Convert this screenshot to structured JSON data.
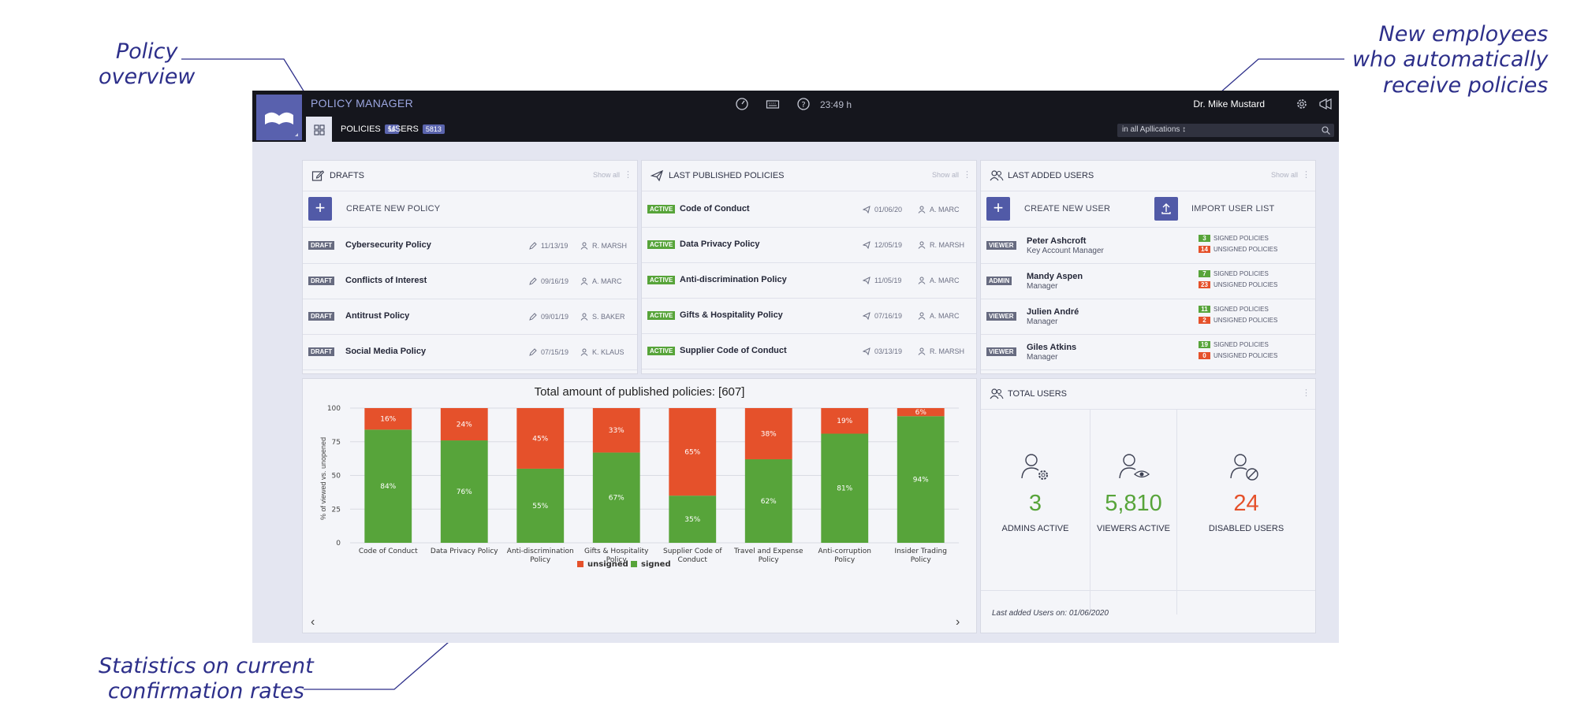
{
  "annotations": {
    "policy_overview": "Policy\noverview",
    "new_employees": "New employees\nwho automatically\nreceive policies",
    "statistics": "Statistics on current\nconfirmation rates"
  },
  "app": {
    "title": "POLICY MANAGER",
    "tabs": [
      {
        "label": "POLICIES",
        "count": "56"
      },
      {
        "label": "USERS",
        "count": "5813"
      }
    ],
    "time": "23:49 h",
    "user": "Dr. Mike Mustard",
    "search_scope": "in all Apllications ↕"
  },
  "drafts": {
    "title": "DRAFTS",
    "show_all": "Show all",
    "create_label": "CREATE NEW POLICY",
    "rows": [
      {
        "tag": "DRAFT",
        "title": "Cybersecurity Policy",
        "date": "11/13/19",
        "author": "R. MARSH"
      },
      {
        "tag": "DRAFT",
        "title": "Conflicts of Interest",
        "date": "09/16/19",
        "author": "A. MARC"
      },
      {
        "tag": "DRAFT",
        "title": "Antitrust Policy",
        "date": "09/01/19",
        "author": "S. BAKER"
      },
      {
        "tag": "DRAFT",
        "title": "Social Media Policy",
        "date": "07/15/19",
        "author": "K. KLAUS"
      }
    ]
  },
  "published": {
    "title": "LAST PUBLISHED POLICIES",
    "show_all": "Show all",
    "rows": [
      {
        "tag": "ACTIVE",
        "title": "Code of Conduct",
        "date": "01/06/20",
        "author": "A. MARC"
      },
      {
        "tag": "ACTIVE",
        "title": "Data Privacy Policy",
        "date": "12/05/19",
        "author": "R. MARSH"
      },
      {
        "tag": "ACTIVE",
        "title": "Anti-discrimination Policy",
        "date": "11/05/19",
        "author": "A. MARC"
      },
      {
        "tag": "ACTIVE",
        "title": "Gifts & Hospitality Policy",
        "date": "07/16/19",
        "author": "A. MARC"
      },
      {
        "tag": "ACTIVE",
        "title": "Supplier Code of Conduct",
        "date": "03/13/19",
        "author": "R. MARSH"
      }
    ]
  },
  "last_users": {
    "title": "LAST ADDED USERS",
    "show_all": "Show all",
    "create_label": "CREATE NEW USER",
    "import_label": "IMPORT USER LIST",
    "signed_label": "SIGNED POLICIES",
    "unsigned_label": "UNSIGNED POLICIES",
    "rows": [
      {
        "role": "VIEWER",
        "name": "Peter Ashcroft",
        "position": "Key Account Manager",
        "signed": "3",
        "unsigned": "14"
      },
      {
        "role": "ADMIN",
        "name": "Mandy Aspen",
        "position": "Manager",
        "signed": "7",
        "unsigned": "23"
      },
      {
        "role": "VIEWER",
        "name": "Julien André",
        "position": "Manager",
        "signed": "11",
        "unsigned": "2"
      },
      {
        "role": "VIEWER",
        "name": "Giles Atkins",
        "position": "Manager",
        "signed": "19",
        "unsigned": "0"
      }
    ]
  },
  "total_users": {
    "title": "TOTAL USERS",
    "admins": {
      "value": "3",
      "label": "ADMINS ACTIVE"
    },
    "viewers": {
      "value": "5,810",
      "label": "VIEWERS ACTIVE"
    },
    "disabled": {
      "value": "24",
      "label": "DISABLED USERS"
    },
    "footer": "Last added Users on: 01/06/2020"
  },
  "colors": {
    "signed": "#57a43a",
    "unsigned": "#e5512b",
    "accent": "#515aa7"
  },
  "chart_data": {
    "type": "bar",
    "stacked": true,
    "title": "Total amount of published policies: [607]",
    "ylabel": "% of viewed vs. unopened",
    "xlabel": "",
    "ylim": [
      0,
      100
    ],
    "yticks": [
      0,
      25,
      50,
      75,
      100
    ],
    "categories": [
      [
        "Code of Conduct"
      ],
      [
        "Data Privacy Policy"
      ],
      [
        "Anti-discrimination",
        "Policy"
      ],
      [
        "Gifts & Hospitality",
        "Policy"
      ],
      [
        "Supplier Code of",
        "Conduct"
      ],
      [
        "Travel and Expense",
        "Policy"
      ],
      [
        "Anti-corruption",
        "Policy"
      ],
      [
        "Insider Trading",
        "Policy"
      ]
    ],
    "series": [
      {
        "name": "signed",
        "color": "#57a43a",
        "values": [
          84,
          76,
          55,
          67,
          35,
          62,
          81,
          94
        ]
      },
      {
        "name": "unsigned",
        "color": "#e5512b",
        "values": [
          16,
          24,
          45,
          33,
          65,
          38,
          19,
          6
        ]
      }
    ],
    "legend": "bottom-center",
    "grid": true
  }
}
